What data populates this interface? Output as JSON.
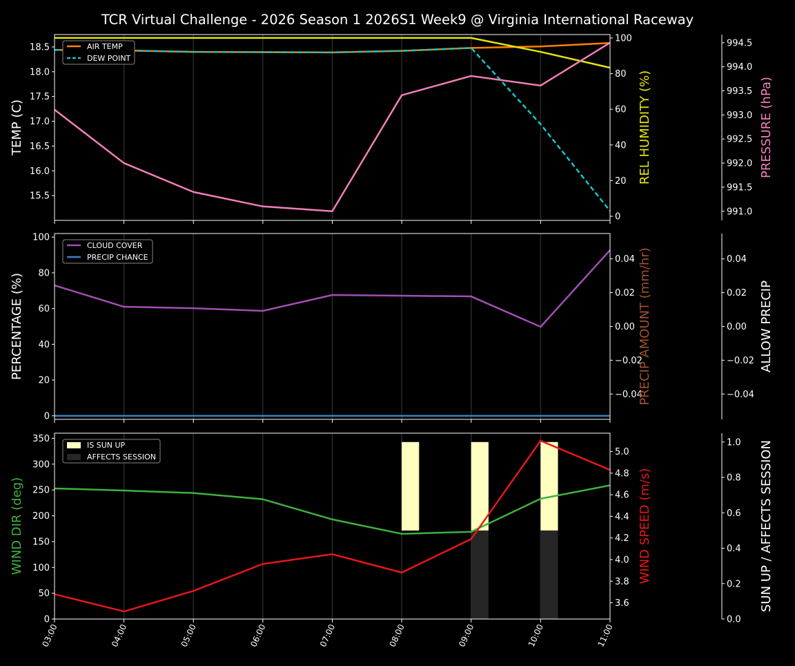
{
  "title": "TCR Virtual Challenge - 2026 Season 1 2026S1 Week9 @ Virginia International Raceway",
  "chart_data": [
    {
      "type": "line",
      "x": [
        "03:00",
        "04:00",
        "05:00",
        "06:00",
        "07:00",
        "08:00",
        "09:00",
        "10:00",
        "11:00"
      ],
      "grid": "vertical",
      "legend": "top-left",
      "axes": {
        "left": {
          "label": "TEMP (C)",
          "ylim": [
            15.0,
            18.75
          ],
          "ticks": [
            15.5,
            16.0,
            16.5,
            17.0,
            17.5,
            18.0,
            18.5
          ],
          "tick_labels": [
            "15.5",
            "16.0",
            "16.5",
            "17.0",
            "17.5",
            "18.0",
            "18.5"
          ],
          "color": "#ffffff"
        },
        "right1": {
          "label": "REL HUMIDITY (%)",
          "ylim": [
            -2.3,
            101.9
          ],
          "ticks": [
            0,
            20,
            40,
            60,
            80,
            100
          ],
          "tick_labels": [
            "0",
            "20",
            "40",
            "60",
            "80",
            "100"
          ],
          "color": "#e5e510"
        },
        "right2": {
          "label": "PRESSURE (hPa)",
          "ylim": [
            990.81,
            994.67
          ],
          "ticks": [
            991.0,
            991.5,
            992.0,
            992.5,
            993.0,
            993.5,
            994.0,
            994.5
          ],
          "tick_labels": [
            "991.0",
            "991.5",
            "992.0",
            "992.5",
            "993.0",
            "993.5",
            "994.0",
            "994.5"
          ],
          "color": "#f080b8"
        }
      },
      "series": [
        {
          "name": "AIR TEMP",
          "axis": "left",
          "color": "#ff8000",
          "dash": false,
          "values": [
            18.44,
            18.43,
            18.4,
            18.395,
            18.39,
            18.42,
            18.48,
            18.51,
            18.58
          ]
        },
        {
          "name": "DEW POINT",
          "axis": "left",
          "color": "#10c8c8",
          "dash": true,
          "values": [
            18.44,
            18.43,
            18.4,
            18.395,
            18.39,
            18.42,
            18.48,
            16.94,
            15.19
          ]
        },
        {
          "axis": "right1",
          "color": "#e5e510",
          "dash": false,
          "values": [
            100,
            100,
            100,
            100,
            100,
            100,
            100,
            92.2,
            83.3
          ]
        },
        {
          "axis": "right2",
          "color": "#f080b8",
          "dash": false,
          "values": [
            993.11,
            992.0,
            991.4,
            991.1,
            991.0,
            993.41,
            993.81,
            993.61,
            994.5
          ]
        }
      ]
    },
    {
      "type": "line",
      "x": [
        "03:00",
        "04:00",
        "05:00",
        "06:00",
        "07:00",
        "08:00",
        "09:00",
        "10:00",
        "11:00"
      ],
      "grid": "vertical",
      "legend": "top-left",
      "axes": {
        "left": {
          "label": "PERCENTAGE (%)",
          "ylim": [
            -2,
            102
          ],
          "ticks": [
            0,
            20,
            40,
            60,
            80,
            100
          ],
          "tick_labels": [
            "0",
            "20",
            "40",
            "60",
            "80",
            "100"
          ],
          "color": "#ffffff"
        },
        "right1": {
          "label": "PRECIP AMOUNT (mm/hr)",
          "ylim": [
            -0.055,
            0.055
          ],
          "ticks": [
            -0.04,
            -0.02,
            0.0,
            0.02,
            0.04
          ],
          "tick_labels": [
            "−0.04",
            "−0.02",
            "0.00",
            "0.02",
            "0.04"
          ],
          "color": "#a0522d"
        },
        "right2": {
          "label": "ALLOW PRECIP",
          "ylim": [
            -0.055,
            0.055
          ],
          "ticks": [
            -0.04,
            -0.02,
            0.0,
            0.02,
            0.04
          ],
          "tick_labels": [
            "−0.04",
            "−0.02",
            "0.00",
            "0.02",
            "0.04"
          ],
          "color": "#ffffff"
        }
      },
      "series": [
        {
          "name": "CLOUD COVER",
          "axis": "left",
          "color": "#a050b0",
          "dash": false,
          "values": [
            73,
            61,
            60.2,
            58.7,
            67.6,
            67.2,
            66.8,
            49.8,
            92.7
          ]
        },
        {
          "name": "PRECIP CHANCE",
          "axis": "left",
          "color": "#3a80c8",
          "dash": false,
          "values": [
            0,
            0,
            0,
            0,
            0,
            0,
            0,
            0,
            0
          ]
        }
      ]
    },
    {
      "type": "line",
      "x": [
        "03:00",
        "04:00",
        "05:00",
        "06:00",
        "07:00",
        "08:00",
        "09:00",
        "10:00",
        "11:00"
      ],
      "grid": "vertical",
      "legend": "top-left",
      "axes": {
        "left": {
          "label": "WIND DIR (deg)",
          "ylim": [
            0,
            360
          ],
          "ticks": [
            0,
            50,
            100,
            150,
            200,
            250,
            300,
            350
          ],
          "tick_labels": [
            "0",
            "50",
            "100",
            "150",
            "200",
            "250",
            "300",
            "350"
          ],
          "color": "#40b040"
        },
        "right1": {
          "label": "WIND SPEED (m/s)",
          "ylim": [
            3.45,
            5.17
          ],
          "ticks": [
            3.6,
            3.8,
            4.0,
            4.2,
            4.4,
            4.6,
            4.8,
            5.0
          ],
          "tick_labels": [
            "3.6",
            "3.8",
            "4.0",
            "4.2",
            "4.4",
            "4.6",
            "4.8",
            "5.0"
          ],
          "color": "#e51818"
        },
        "right2": {
          "label": "SUN UP / AFFECTS SESSION",
          "ylim": [
            0,
            1.05
          ],
          "ticks": [
            0,
            0.2,
            0.4,
            0.6,
            0.8,
            1.0
          ],
          "tick_labels": [
            "0.0",
            "0.2",
            "0.4",
            "0.6",
            "0.8",
            "1.0"
          ],
          "color": "#ffffff"
        }
      },
      "series": [
        {
          "axis": "left",
          "color": "#40b040",
          "dash": false,
          "values": [
            253,
            249,
            244,
            232,
            193,
            165,
            169,
            233,
            259
          ]
        },
        {
          "axis": "right1",
          "color": "#e51818",
          "dash": false,
          "values": [
            3.68,
            3.52,
            3.71,
            3.96,
            4.05,
            3.88,
            4.19,
            5.1,
            4.83
          ]
        }
      ],
      "bars": [
        {
          "name": "IS SUN UP",
          "color": "#ffffc0",
          "values": [
            0,
            0,
            0,
            0,
            0,
            1,
            1,
            1,
            0
          ]
        },
        {
          "name": "AFFECTS SESSION",
          "color": "#262626",
          "values": [
            0,
            0,
            0,
            0,
            0,
            0,
            1,
            1,
            0
          ]
        }
      ]
    }
  ]
}
